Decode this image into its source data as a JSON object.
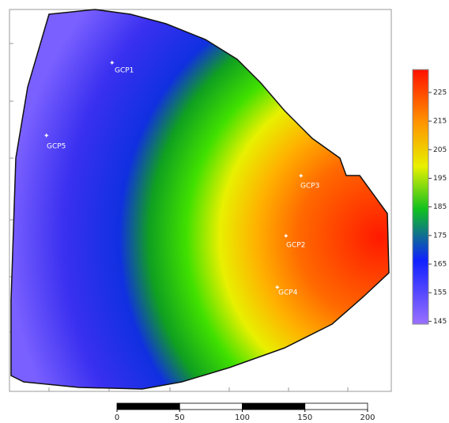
{
  "map": {
    "points": [
      {
        "label": "GCP1"
      },
      {
        "label": "GCP5"
      },
      {
        "label": "GCP3"
      },
      {
        "label": "GCP2"
      },
      {
        "label": "GCP4"
      }
    ],
    "colorbar": {
      "lim": [
        144,
        233
      ],
      "ticks": [
        145,
        155,
        165,
        175,
        185,
        195,
        205,
        215,
        225
      ]
    },
    "scale_bar": {
      "lim": [
        0,
        200
      ],
      "ticks": [
        0,
        50,
        100,
        150,
        200
      ]
    }
  }
}
